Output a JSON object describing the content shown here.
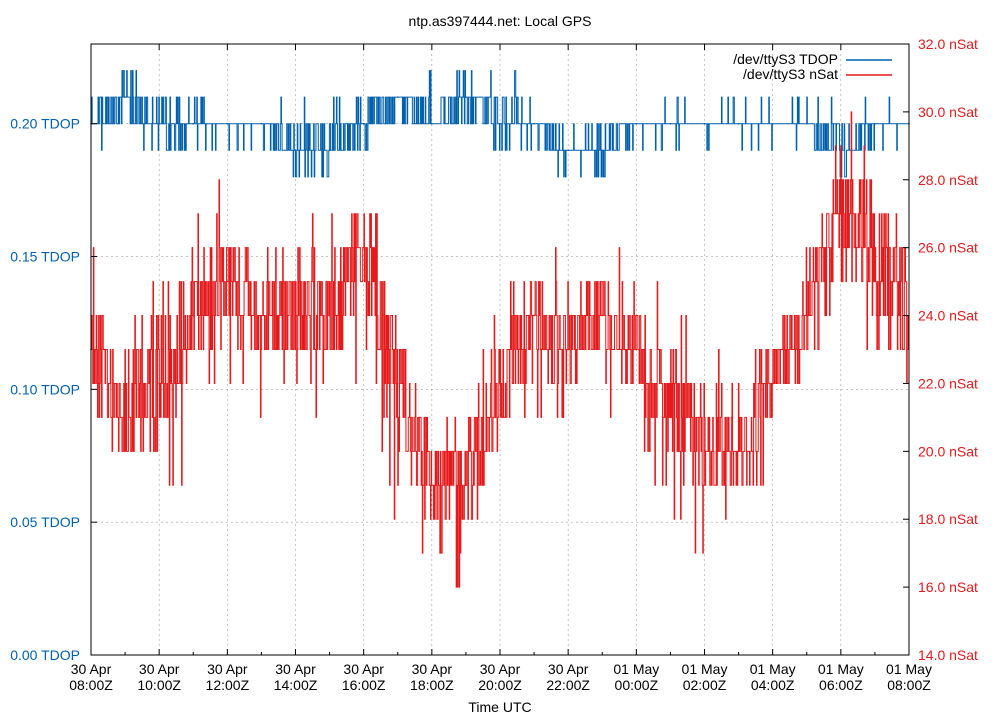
{
  "chart_data": {
    "type": "line",
    "title": "ntp.as397444.net: Local GPS",
    "xlabel": "Time UTC",
    "x_ticks": [
      [
        "30 Apr",
        "08:00Z"
      ],
      [
        "30 Apr",
        "10:00Z"
      ],
      [
        "30 Apr",
        "12:00Z"
      ],
      [
        "30 Apr",
        "14:00Z"
      ],
      [
        "30 Apr",
        "16:00Z"
      ],
      [
        "30 Apr",
        "18:00Z"
      ],
      [
        "30 Apr",
        "20:00Z"
      ],
      [
        "30 Apr",
        "22:00Z"
      ],
      [
        "01 May",
        "00:00Z"
      ],
      [
        "01 May",
        "02:00Z"
      ],
      [
        "01 May",
        "04:00Z"
      ],
      [
        "01 May",
        "06:00Z"
      ],
      [
        "01 May",
        "08:00Z"
      ]
    ],
    "x_range": [
      "30 Apr 08:00Z",
      "01 May 08:00Z"
    ],
    "y_left": {
      "ylim": [
        0.0,
        0.23
      ],
      "ticks": [
        "0.00 TDOP",
        "0.05 TDOP",
        "0.10 TDOP",
        "0.15 TDOP",
        "0.20 TDOP"
      ],
      "color": "#0060ad"
    },
    "y_right": {
      "ylim": [
        14.0,
        32.0
      ],
      "ticks": [
        "14.0 nSat",
        "16.0 nSat",
        "18.0 nSat",
        "20.0 nSat",
        "22.0 nSat",
        "24.0 nSat",
        "26.0 nSat",
        "28.0 nSat",
        "30.0 nSat",
        "32.0 nSat"
      ],
      "color": "#e41a1c"
    },
    "grid": true,
    "legend_position": "top-right",
    "series": [
      {
        "name": "/dev/ttyS3 TDOP",
        "axis": "left",
        "color": "#0060ad",
        "x": [
          "30 Apr 08:00Z",
          "30 Apr 09:00Z",
          "30 Apr 10:00Z",
          "30 Apr 11:00Z",
          "30 Apr 12:00Z",
          "30 Apr 13:00Z",
          "30 Apr 14:00Z",
          "30 Apr 15:00Z",
          "30 Apr 16:00Z",
          "30 Apr 17:00Z",
          "30 Apr 18:00Z",
          "30 Apr 19:00Z",
          "30 Apr 20:00Z",
          "30 Apr 21:00Z",
          "30 Apr 22:00Z",
          "30 Apr 23:00Z",
          "01 May 00:00Z",
          "01 May 01:00Z",
          "01 May 02:00Z",
          "01 May 03:00Z",
          "01 May 04:00Z",
          "01 May 05:00Z",
          "01 May 06:00Z",
          "01 May 07:00Z",
          "01 May 08:00Z"
        ],
        "values": [
          0.2,
          0.21,
          0.2,
          0.2,
          0.2,
          0.2,
          0.19,
          0.19,
          0.2,
          0.21,
          0.2,
          0.21,
          0.2,
          0.2,
          0.19,
          0.19,
          0.2,
          0.2,
          0.2,
          0.2,
          0.2,
          0.2,
          0.19,
          0.2,
          0.2
        ],
        "min": [
          0.19,
          0.19,
          0.19,
          0.19,
          0.19,
          0.19,
          0.18,
          0.18,
          0.19,
          0.2,
          0.2,
          0.19,
          0.19,
          0.19,
          0.18,
          0.18,
          0.19,
          0.19,
          0.19,
          0.19,
          0.19,
          0.19,
          0.18,
          0.19,
          0.19
        ],
        "max": [
          0.21,
          0.22,
          0.22,
          0.21,
          0.2,
          0.21,
          0.21,
          0.21,
          0.22,
          0.22,
          0.22,
          0.23,
          0.22,
          0.21,
          0.2,
          0.21,
          0.2,
          0.21,
          0.21,
          0.21,
          0.21,
          0.21,
          0.22,
          0.21,
          0.2
        ]
      },
      {
        "name": "/dev/ttyS3 nSat",
        "axis": "right",
        "color": "#e41a1c",
        "x": [
          "30 Apr 08:00Z",
          "30 Apr 09:00Z",
          "30 Apr 10:00Z",
          "30 Apr 11:00Z",
          "30 Apr 12:00Z",
          "30 Apr 13:00Z",
          "30 Apr 14:00Z",
          "30 Apr 15:00Z",
          "30 Apr 16:00Z",
          "30 Apr 17:00Z",
          "30 Apr 18:00Z",
          "30 Apr 19:00Z",
          "30 Apr 20:00Z",
          "30 Apr 21:00Z",
          "30 Apr 22:00Z",
          "30 Apr 23:00Z",
          "01 May 00:00Z",
          "01 May 01:00Z",
          "01 May 02:00Z",
          "01 May 03:00Z",
          "01 May 04:00Z",
          "01 May 05:00Z",
          "01 May 06:00Z",
          "01 May 07:00Z",
          "01 May 08:00Z"
        ],
        "values": [
          23,
          21,
          22,
          24,
          25,
          24,
          24,
          24,
          26,
          22,
          19,
          19,
          22,
          24,
          23,
          24,
          23,
          21,
          20,
          20,
          22,
          24,
          27,
          26,
          24
        ],
        "min": [
          20,
          19,
          16,
          21,
          22,
          21,
          21,
          20,
          22,
          18,
          16,
          16,
          19,
          21,
          21,
          21,
          20,
          18,
          17,
          18,
          19,
          21,
          24,
          22,
          21
        ],
        "max": [
          26,
          25,
          25,
          27,
          28,
          27,
          27,
          27,
          28,
          25,
          21,
          22,
          25,
          26,
          26,
          26,
          26,
          24,
          23,
          23,
          24,
          26,
          31,
          29,
          27
        ]
      }
    ]
  }
}
